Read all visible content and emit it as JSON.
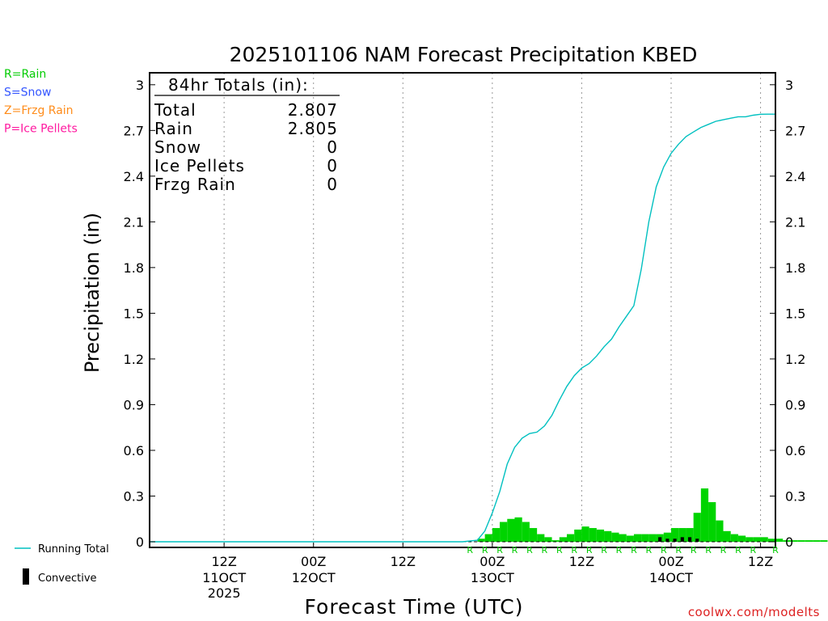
{
  "chart_data": {
    "type": "bar",
    "title": "2025101106 NAM Forecast Precipitation KBED",
    "xlabel": "Forecast Time (UTC)",
    "ylabel": "Precipitation (in)",
    "ylim": [
      0,
      3.2
    ],
    "yticks": [
      "0",
      "0.3",
      "0.6",
      "0.9",
      "1.2",
      "1.5",
      "1.8",
      "2.1",
      "2.4",
      "2.7",
      "3"
    ],
    "xlim_hours": [
      -4,
      80
    ],
    "bar_width_hours": 1,
    "grid": "vertical dotted",
    "xticks": [
      {
        "hour": 6,
        "label": "12Z",
        "date": "11OCT",
        "year": "2025"
      },
      {
        "hour": 18,
        "label": "00Z",
        "date": "12OCT",
        "year": ""
      },
      {
        "hour": 30,
        "label": "12Z",
        "date": "",
        "year": ""
      },
      {
        "hour": 42,
        "label": "00Z",
        "date": "13OCT",
        "year": ""
      },
      {
        "hour": 54,
        "label": "12Z",
        "date": "",
        "year": ""
      },
      {
        "hour": 66,
        "label": "00Z",
        "date": "14OCT",
        "year": ""
      },
      {
        "hour": 78,
        "label": "12Z",
        "date": "",
        "year": ""
      }
    ],
    "series": [
      {
        "name": "Rain",
        "color": "#00d400",
        "hour_start": 40,
        "values": [
          0.02,
          0.05,
          0.09,
          0.13,
          0.15,
          0.16,
          0.13,
          0.09,
          0.05,
          0.03,
          0.01,
          0.03,
          0.05,
          0.08,
          0.1,
          0.09,
          0.08,
          0.07,
          0.06,
          0.05,
          0.04,
          0.05,
          0.05,
          0.05,
          0.05,
          0.06,
          0.09,
          0.09,
          0.09,
          0.19,
          0.35,
          0.26,
          0.14,
          0.07,
          0.05,
          0.04,
          0.03,
          0.03,
          0.03,
          0.02,
          0.02,
          0.01,
          0.01,
          0.01,
          0.01,
          0.01,
          0.01
        ]
      },
      {
        "name": "Convective",
        "color": "#000000",
        "hour_start": 64,
        "values": [
          0.03,
          0.02,
          0.02,
          0.03,
          0.03,
          0.02
        ]
      },
      {
        "name": "Running Total",
        "color": "#00c0c0",
        "x": [
          -4,
          35,
          38,
          40,
          41,
          42,
          43,
          44,
          45,
          46,
          47,
          48,
          49,
          50,
          51,
          52,
          53,
          54,
          55,
          56,
          57,
          58,
          59,
          60,
          61,
          62,
          63,
          64,
          65,
          66,
          67,
          68,
          69,
          70,
          71,
          72,
          73,
          74,
          75,
          76,
          77,
          78,
          79,
          80
        ],
        "values": [
          0,
          0,
          0,
          0.01,
          0.07,
          0.19,
          0.33,
          0.51,
          0.62,
          0.68,
          0.71,
          0.72,
          0.76,
          0.83,
          0.93,
          1.02,
          1.09,
          1.14,
          1.17,
          1.22,
          1.28,
          1.33,
          1.41,
          1.48,
          1.55,
          1.79,
          2.1,
          2.33,
          2.46,
          2.55,
          2.61,
          2.66,
          2.69,
          2.72,
          2.74,
          2.76,
          2.77,
          2.78,
          2.79,
          2.79,
          2.8,
          2.806,
          2.807,
          2.807
        ]
      }
    ],
    "ptype_strip": {
      "symbol": "R",
      "color": "#00cc00",
      "hours": [
        39,
        41,
        43,
        45,
        47,
        49,
        51,
        53,
        55,
        57,
        59,
        61,
        63,
        65,
        67,
        69,
        71,
        73,
        75,
        77,
        80
      ]
    },
    "totals": {
      "heading": "84hr Totals (in):",
      "rows": [
        {
          "label": "Total",
          "value": "2.807"
        },
        {
          "label": "Rain",
          "value": "2.805"
        },
        {
          "label": "Snow",
          "value": "0"
        },
        {
          "label": "Ice Pellets",
          "value": "0"
        },
        {
          "label": "Frzg Rain",
          "value": "0"
        }
      ]
    },
    "legend": {
      "ptypes": [
        {
          "label": "R=Rain",
          "color": "#00cc00"
        },
        {
          "label": "S=Snow",
          "color": "#3355ff"
        },
        {
          "label": "Z=Frzg Rain",
          "color": "#ff8c1a"
        },
        {
          "label": "P=Ice Pellets",
          "color": "#ff1aa0"
        }
      ],
      "running_total": "Running Total",
      "convective": "Convective"
    },
    "credit": "coolwx.com/modelts"
  }
}
